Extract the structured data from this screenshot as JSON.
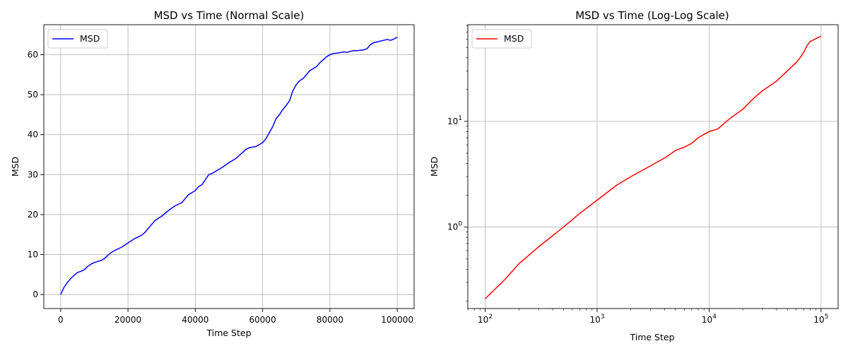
{
  "chart_data": [
    {
      "type": "line",
      "title": "MSD vs Time (Normal Scale)",
      "xlabel": "Time Step",
      "ylabel": "MSD",
      "xscale": "linear",
      "yscale": "linear",
      "xlim": [
        -5000,
        105000
      ],
      "ylim": [
        -3.5,
        67.5
      ],
      "xticks": [
        0,
        20000,
        40000,
        60000,
        80000,
        100000
      ],
      "yticks": [
        0,
        10,
        20,
        30,
        40,
        50,
        60
      ],
      "grid": true,
      "legend_position": "upper-left",
      "series": [
        {
          "name": "MSD",
          "color": "#0000ff",
          "x": [
            0,
            1000,
            2000,
            3000,
            4000,
            5000,
            6000,
            7000,
            8000,
            9000,
            10000,
            11000,
            12000,
            13000,
            14000,
            15000,
            16000,
            18000,
            20000,
            22000,
            24000,
            25000,
            26000,
            27000,
            28000,
            30000,
            32000,
            34000,
            36000,
            37000,
            38000,
            39000,
            40000,
            41000,
            42000,
            44000,
            45000,
            46000,
            48000,
            50000,
            52000,
            54000,
            55000,
            56000,
            57000,
            58000,
            60000,
            61000,
            62000,
            63000,
            64000,
            65000,
            66000,
            67000,
            68000,
            69000,
            70000,
            71000,
            72000,
            73000,
            74000,
            75000,
            76000,
            77000,
            78000,
            79000,
            80000,
            81000,
            82000,
            83000,
            84000,
            85000,
            86000,
            87000,
            88000,
            89000,
            90000,
            91000,
            92000,
            93000,
            94000,
            95000,
            96000,
            97000,
            98000,
            99000,
            100000
          ],
          "y": [
            0,
            1.8,
            3.0,
            4.0,
            4.8,
            5.5,
            5.8,
            6.2,
            7.0,
            7.6,
            8.0,
            8.3,
            8.5,
            9.0,
            9.8,
            10.5,
            11.0,
            11.8,
            12.9,
            14.0,
            14.8,
            15.5,
            16.5,
            17.5,
            18.5,
            19.6,
            21.0,
            22.2,
            23.0,
            24.0,
            25.0,
            25.5,
            26.0,
            27.0,
            27.5,
            30.0,
            30.3,
            30.8,
            31.8,
            33.0,
            34.0,
            35.5,
            36.3,
            36.7,
            36.9,
            37.0,
            38.0,
            39.0,
            40.5,
            42.0,
            44.0,
            45.0,
            46.3,
            47.3,
            48.5,
            51.0,
            52.5,
            53.5,
            54.0,
            55.0,
            56.0,
            56.5,
            57.0,
            58.0,
            58.7,
            59.5,
            60.0,
            60.3,
            60.4,
            60.5,
            60.7,
            60.6,
            60.8,
            61.0,
            61.0,
            61.1,
            61.2,
            61.5,
            62.5,
            63.0,
            63.2,
            63.4,
            63.6,
            63.8,
            63.6,
            63.9,
            64.4
          ]
        }
      ]
    },
    {
      "type": "line",
      "title": "MSD vs Time (Log-Log Scale)",
      "xlabel": "Time Step",
      "ylabel": "MSD",
      "xscale": "log",
      "yscale": "log",
      "xlim": [
        70,
        142000
      ],
      "ylim": [
        0.17,
        82
      ],
      "xticks": [
        100,
        1000,
        10000,
        100000
      ],
      "xtick_labels": [
        {
          "base": "10",
          "exp": "2"
        },
        {
          "base": "10",
          "exp": "3"
        },
        {
          "base": "10",
          "exp": "4"
        },
        {
          "base": "10",
          "exp": "5"
        }
      ],
      "yticks": [
        1,
        10
      ],
      "ytick_labels": [
        {
          "base": "10",
          "exp": "0"
        },
        {
          "base": "10",
          "exp": "1"
        }
      ],
      "grid": true,
      "legend_position": "upper-left",
      "series": [
        {
          "name": "MSD",
          "color": "#ff0000",
          "x": [
            100,
            150,
            200,
            300,
            500,
            700,
            1000,
            1500,
            2000,
            3000,
            4000,
            4500,
            5000,
            6000,
            7000,
            8000,
            10000,
            12000,
            14000,
            16000,
            20000,
            25000,
            30000,
            40000,
            50000,
            60000,
            65000,
            70000,
            75000,
            80000,
            90000,
            100000
          ],
          "y": [
            0.21,
            0.32,
            0.45,
            0.65,
            1.0,
            1.35,
            1.8,
            2.5,
            3.0,
            3.8,
            4.5,
            4.9,
            5.3,
            5.7,
            6.2,
            7.0,
            8.0,
            8.5,
            9.8,
            11.0,
            13.0,
            16.5,
            19.5,
            24.0,
            30.0,
            36.0,
            40.0,
            45.0,
            52.0,
            57.0,
            60.5,
            64.0
          ]
        }
      ]
    }
  ]
}
